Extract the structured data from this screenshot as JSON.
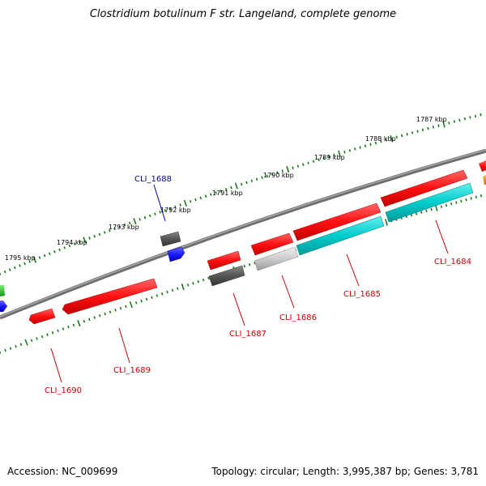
{
  "title": "Clostridium botulinum F str. Langeland, complete genome",
  "footer": {
    "accession": "Accession: NC_009699",
    "summary": "Topology: circular; Length: 3,995,387 bp; Genes: 3,781"
  },
  "colors": {
    "backbone": "#7a7a7a",
    "ruler_ticks": "#1a7a1a",
    "red": "#ff1a1a",
    "cyan": "#00cccc",
    "dark_gray": "#5a5a5a",
    "light_gray": "#c8c8c8",
    "blue": "#1a1aff",
    "green": "#22cc22",
    "orange": "#ff8800",
    "label_red": "#cc0000",
    "label_blue": "#0000aa"
  },
  "ruler": {
    "labels": [
      "1787 kbp",
      "1788 kbp",
      "1789 kbp",
      "1790 kbp",
      "1791 kbp",
      "1792 kbp",
      "1793 kbp",
      "1794 kbp",
      "1795 kbp"
    ]
  },
  "genes": [
    {
      "name": "CLI_1684",
      "color": "label_red"
    },
    {
      "name": "CLI_1685",
      "color": "label_red"
    },
    {
      "name": "CLI_1686",
      "color": "label_red"
    },
    {
      "name": "CLI_1687",
      "color": "label_red"
    },
    {
      "name": "CLI_1688",
      "color": "label_blue"
    },
    {
      "name": "CLI_1689",
      "color": "label_red"
    },
    {
      "name": "CLI_1690",
      "color": "label_red"
    }
  ]
}
